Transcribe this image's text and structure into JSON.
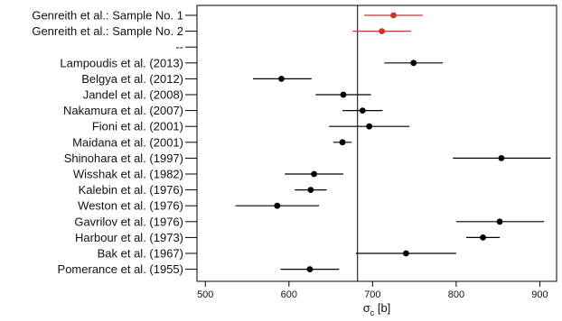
{
  "chart_data": {
    "type": "scatter",
    "subtype": "forest-plot",
    "title": "",
    "xlabel_symbol": "σ",
    "xlabel_subscript": "c",
    "xlabel_unit": " [b]",
    "xlim": [
      490,
      920
    ],
    "xticks": [
      500,
      600,
      700,
      800,
      900
    ],
    "xtick_labels": [
      "500",
      "600",
      "700",
      "800",
      "900"
    ],
    "reference_line": 682,
    "grid": false,
    "colors": {
      "highlight": "#c0392b",
      "default": "#000000"
    },
    "studies": [
      {
        "label": "Genreith et al.: Sample No. 1",
        "value": 725,
        "low": 690,
        "high": 760,
        "highlight": true
      },
      {
        "label": "Genreith et al.: Sample No. 2",
        "value": 711,
        "low": 676,
        "high": 746,
        "highlight": true
      },
      {
        "label": "--",
        "value": null,
        "low": null,
        "high": null,
        "highlight": false
      },
      {
        "label": "Lampoudis et al. (2013)",
        "value": 749,
        "low": 714,
        "high": 784,
        "highlight": false
      },
      {
        "label": "Belgya et al. (2012)",
        "value": 591,
        "low": 557,
        "high": 627,
        "highlight": false
      },
      {
        "label": "Jandel et al. (2008)",
        "value": 665,
        "low": 632,
        "high": 698,
        "highlight": false
      },
      {
        "label": "Nakamura et al. (2007)",
        "value": 688,
        "low": 664,
        "high": 712,
        "highlight": false
      },
      {
        "label": "Fioni et al. (2001)",
        "value": 696,
        "low": 648,
        "high": 744,
        "highlight": false
      },
      {
        "label": "Maidana et al. (2001)",
        "value": 664,
        "low": 653,
        "high": 675,
        "highlight": false
      },
      {
        "label": "Shinohara et al. (1997)",
        "value": 854,
        "low": 796,
        "high": 913,
        "highlight": false
      },
      {
        "label": "Wisshak et al. (1982)",
        "value": 630,
        "low": 595,
        "high": 665,
        "highlight": false
      },
      {
        "label": "Kalebin et al. (1976)",
        "value": 626,
        "low": 607,
        "high": 645,
        "highlight": false
      },
      {
        "label": "Weston et al. (1976)",
        "value": 586,
        "low": 536,
        "high": 636,
        "highlight": false
      },
      {
        "label": "Gavrilov et al. (1976)",
        "value": 852,
        "low": 800,
        "high": 905,
        "highlight": false
      },
      {
        "label": "Harbour et al. (1973)",
        "value": 832,
        "low": 812,
        "high": 852,
        "highlight": false
      },
      {
        "label": "Bak et al. (1967)",
        "value": 740,
        "low": 680,
        "high": 800,
        "highlight": false
      },
      {
        "label": "Pomerance et al. (1955)",
        "value": 625,
        "low": 590,
        "high": 660,
        "highlight": false
      }
    ]
  }
}
